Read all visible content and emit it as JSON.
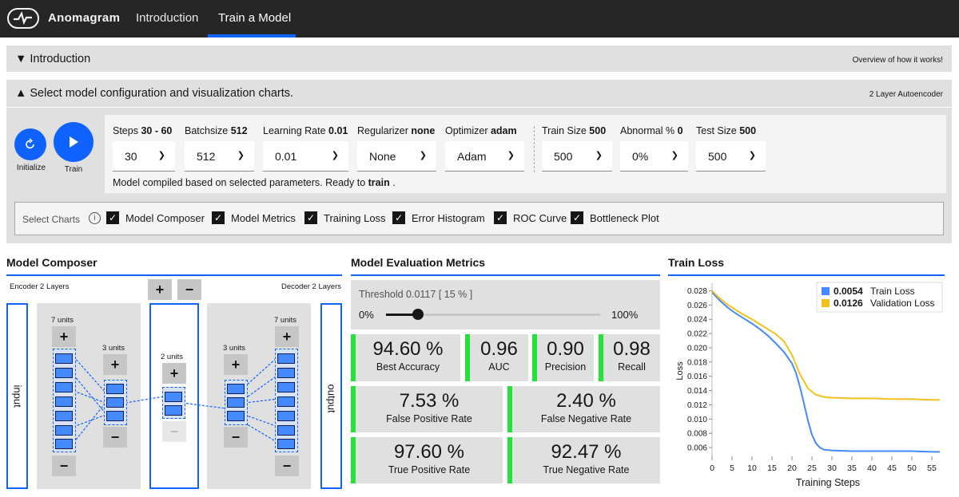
{
  "app": {
    "title": "Anomagram"
  },
  "nav": {
    "tabs": [
      {
        "label": "Introduction"
      },
      {
        "label": "Train a Model",
        "active": true
      }
    ]
  },
  "intro_bar": {
    "title": "▼ Introduction",
    "right": "Overview of how it works!"
  },
  "config_bar": {
    "title": "▲ Select model configuration and visualization charts.",
    "right": "2 Layer Autoencoder"
  },
  "controls": {
    "initialize": "Initialize",
    "train": "Train"
  },
  "params": {
    "steps": {
      "label": "Steps",
      "value_text": "30 - 60",
      "selected": "30"
    },
    "batchsize": {
      "label": "Batchsize",
      "value_text": "512",
      "selected": "512"
    },
    "learning_rate": {
      "label": "Learning Rate",
      "value_text": "0.01",
      "selected": "0.01"
    },
    "regularizer": {
      "label": "Regularizer",
      "value_text": "none",
      "selected": "None"
    },
    "optimizer": {
      "label": "Optimizer",
      "value_text": "adam",
      "selected": "Adam"
    },
    "train_size": {
      "label": "Train Size",
      "value_text": "500",
      "selected": "500"
    },
    "abnormal": {
      "label": "Abnormal %",
      "value_text": "0",
      "selected": "0%"
    },
    "test_size": {
      "label": "Test Size",
      "value_text": "500",
      "selected": "500"
    }
  },
  "status": {
    "prefix": "Model compiled based on selected parameters. Ready to",
    "keyword": "train",
    "suffix": "."
  },
  "select_charts": {
    "label": "Select Charts",
    "items": [
      {
        "label": "Model Composer",
        "checked": true
      },
      {
        "label": "Model Metrics",
        "checked": true
      },
      {
        "label": "Training Loss",
        "checked": true
      },
      {
        "label": "Error Histogram",
        "checked": true
      },
      {
        "label": "ROC Curve",
        "checked": true
      },
      {
        "label": "Bottleneck Plot",
        "checked": true
      }
    ]
  },
  "composer": {
    "title": "Model Composer",
    "encoder_label": "Encoder 2 Layers",
    "decoder_label": "Decoder 2 Layers",
    "input_label": "input",
    "output_label": "output",
    "plus": "+",
    "minus": "−",
    "layers": {
      "enc1": "7 units",
      "enc2": "3 units",
      "bottleneck": "2 units",
      "dec1": "3 units",
      "dec2": "7 units"
    }
  },
  "metrics": {
    "title": "Model Evaluation Metrics",
    "threshold_label": "Threshold 0.0117 [ 15 % ]",
    "slider_min": "0%",
    "slider_max": "100%",
    "slider_value_pct": 15,
    "row1": [
      {
        "value": "94.60 %",
        "label": "Best Accuracy"
      },
      {
        "value": "0.96",
        "label": "AUC"
      },
      {
        "value": "0.90",
        "label": "Precision"
      },
      {
        "value": "0.98",
        "label": "Recall"
      }
    ],
    "row2": [
      {
        "value": "7.53 %",
        "label": "False Positive Rate"
      },
      {
        "value": "2.40 %",
        "label": "False Negative Rate"
      }
    ],
    "row3": [
      {
        "value": "97.60 %",
        "label": "True Positive Rate"
      },
      {
        "value": "92.47 %",
        "label": "True Negative Rate"
      }
    ],
    "accent_color": "#24e23a"
  },
  "chart_data": {
    "type": "line",
    "title": "Train Loss",
    "xlabel": "Training Steps",
    "ylabel": "Loss",
    "xlim": [
      0,
      58
    ],
    "ylim": [
      0.005,
      0.0285
    ],
    "x_ticks": [
      "0",
      "5",
      "10",
      "15",
      "20",
      "25",
      "30",
      "35",
      "40",
      "45",
      "50",
      "55"
    ],
    "y_ticks": [
      "0.028",
      "0.026",
      "0.024",
      "0.022",
      "0.020",
      "0.018",
      "0.016",
      "0.014",
      "0.012",
      "0.010",
      "0.008",
      "0.006"
    ],
    "series": [
      {
        "name": "Train Loss",
        "legend_value": "0.0054",
        "color": "#4589ff",
        "x": [
          0,
          2,
          4,
          6,
          8,
          10,
          12,
          14,
          16,
          18,
          20,
          21,
          22,
          23,
          24,
          25,
          26,
          27,
          28,
          30,
          35,
          40,
          45,
          50,
          55,
          57
        ],
        "y": [
          0.0278,
          0.0266,
          0.0256,
          0.0248,
          0.0241,
          0.0234,
          0.0226,
          0.0217,
          0.0206,
          0.0194,
          0.0178,
          0.0165,
          0.0145,
          0.0122,
          0.0098,
          0.0078,
          0.0066,
          0.006,
          0.0057,
          0.0056,
          0.0055,
          0.0055,
          0.0055,
          0.0055,
          0.0054,
          0.0054
        ]
      },
      {
        "name": "Validation Loss",
        "legend_value": "0.0126",
        "color": "#f1c21b",
        "x": [
          0,
          2,
          4,
          6,
          8,
          10,
          12,
          14,
          16,
          18,
          20,
          22,
          24,
          26,
          28,
          30,
          35,
          40,
          45,
          50,
          55,
          57
        ],
        "y": [
          0.028,
          0.0269,
          0.026,
          0.0253,
          0.0246,
          0.024,
          0.0233,
          0.0226,
          0.0219,
          0.0209,
          0.019,
          0.0163,
          0.0143,
          0.0134,
          0.0131,
          0.013,
          0.0129,
          0.0129,
          0.0128,
          0.0128,
          0.0127,
          0.0127
        ]
      }
    ],
    "grid": false,
    "legend": "top-right"
  }
}
